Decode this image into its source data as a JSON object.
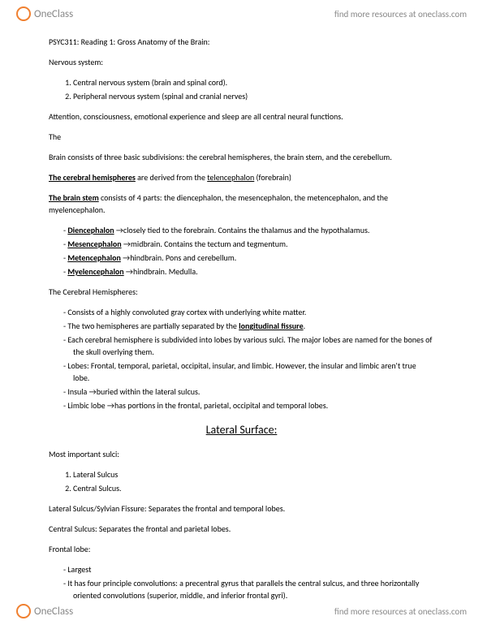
{
  "header": {
    "brand": "OneClass",
    "link": "find more resources at oneclass.com"
  },
  "footer": {
    "brand": "OneClass",
    "link": "find more resources at oneclass.com"
  },
  "title": "PSYC311: Reading 1: Gross Anatomy of the Brain:",
  "ns_heading": "Nervous system:",
  "ns_items": [
    "Central nervous system (brain and spinal cord).",
    "Peripheral nervous system (spinal and cranial nerves)"
  ],
  "attention": "Attention, consciousness, emotional experience and sleep are all central neural functions.",
  "the_word": "The",
  "brain_div": "Brain consists of three basic subdivisions: the cerebral hemispheres, the brain stem, and the cerebellum.",
  "cereb_hem_label": "The cerebral hemispheres",
  "cereb_hem_rest": " are derived from the ",
  "telen": "telencephalon",
  "forebrain_suffix": " (forebrain)",
  "brainstem_label": "The brain stem",
  "brainstem_rest": " consists of 4 parts: the diencephalon, the mesencephalon, the metencephalon, and the myelencephalon.",
  "parts": [
    {
      "name": "Diencephalon",
      "desc": "closely tied to the forebrain. Contains the thalamus and the hypothalamus."
    },
    {
      "name": "Mesencephalon",
      "desc": "midbrain. Contains the tectum and tegmentum."
    },
    {
      "name": "Metencephalon",
      "desc": "hindbrain. Pons and cerebellum."
    },
    {
      "name": "Myelencephalon",
      "desc": "hindbrain. Medulla."
    }
  ],
  "ch_heading": "The Cerebral Hemispheres:",
  "ch_items_pre": [
    "Consists of a highly convoluted gray cortex with underlying white matter."
  ],
  "ch_sep_pre": "The two hemispheres are partially separated by the ",
  "ch_sep_term": "longitudinal fissure",
  "ch_sep_post": ".",
  "ch_items_post": [
    "Each cerebral hemisphere is subdivided into lobes by various sulci. The major lobes are named for the bones of the skull overlying them.",
    "Lobes: Frontal, temporal, parietal, occipital, insular, and limbic. However, the insular and limbic aren't true lobe."
  ],
  "ch_arrow_items": [
    {
      "name": "Insula",
      "desc": "buried within the lateral sulcus."
    },
    {
      "name": "Limbic lobe",
      "desc": "has portions in the frontal, parietal, occipital and temporal lobes."
    }
  ],
  "lateral_title": "Lateral Surface:",
  "sulci_heading": "Most important sulci:",
  "sulci_items": [
    "Lateral Sulcus",
    "Central Sulcus."
  ],
  "lat_sulcus": "Lateral Sulcus/Sylvian Fissure: Separates the frontal and temporal lobes.",
  "cent_sulcus": "Central Sulcus: Separates the frontal and parietal lobes.",
  "frontal_heading": "Frontal lobe:",
  "frontal_items": [
    "Largest",
    "It has four principle convolutions: a precentral gyrus that parallels the central sulcus, and three horizontally oriented convolutions (superior, middle, and inferior frontal gyri)."
  ]
}
